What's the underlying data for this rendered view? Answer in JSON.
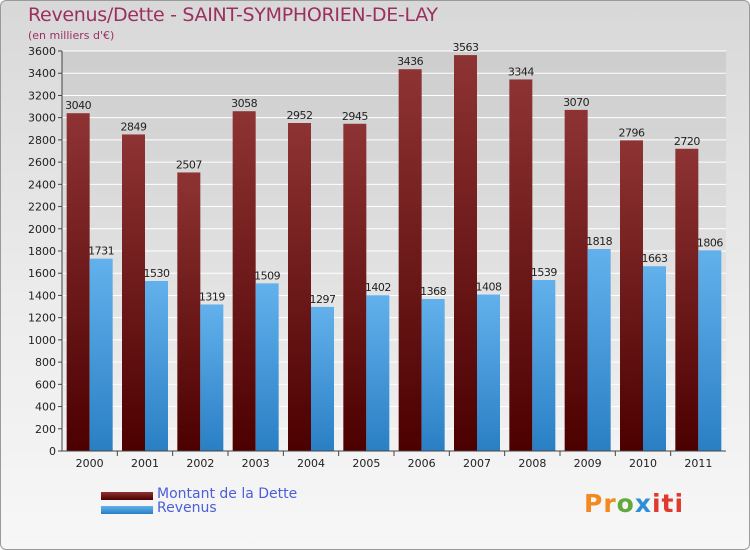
{
  "colors": {
    "dette_top": "#8e3333",
    "dette_bottom": "#4c0000",
    "revenus_top": "#62b1ec",
    "revenus_bottom": "#2a7fc4"
  },
  "chart_data": {
    "type": "bar",
    "title": "Revenus/Dette - SAINT-SYMPHORIEN-DE-LAY",
    "subtitle": "(en milliers d'€)",
    "categories": [
      "2000",
      "2001",
      "2002",
      "2003",
      "2004",
      "2005",
      "2006",
      "2007",
      "2008",
      "2009",
      "2010",
      "2011"
    ],
    "series": [
      {
        "name": "Montant de la Dette",
        "values": [
          3040,
          2849,
          2507,
          3058,
          2952,
          2945,
          3436,
          3563,
          3344,
          3070,
          2796,
          2720
        ]
      },
      {
        "name": "Revenus",
        "values": [
          1731,
          1530,
          1319,
          1509,
          1297,
          1402,
          1368,
          1408,
          1539,
          1818,
          1663,
          1806
        ]
      }
    ],
    "ylim": [
      0,
      3600
    ],
    "ytick_step": 200,
    "yticks": [
      "0",
      "200",
      "400",
      "600",
      "800",
      "1000",
      "1200",
      "1400",
      "1600",
      "1800",
      "2000",
      "2200",
      "2400",
      "2600",
      "2800",
      "3000",
      "3200",
      "3400",
      "3600"
    ],
    "grid": true,
    "legend_position": "bottom-left"
  },
  "logo": {
    "p1": "Pr",
    "p2": "o",
    "p3": "x",
    "p4": "iti"
  }
}
